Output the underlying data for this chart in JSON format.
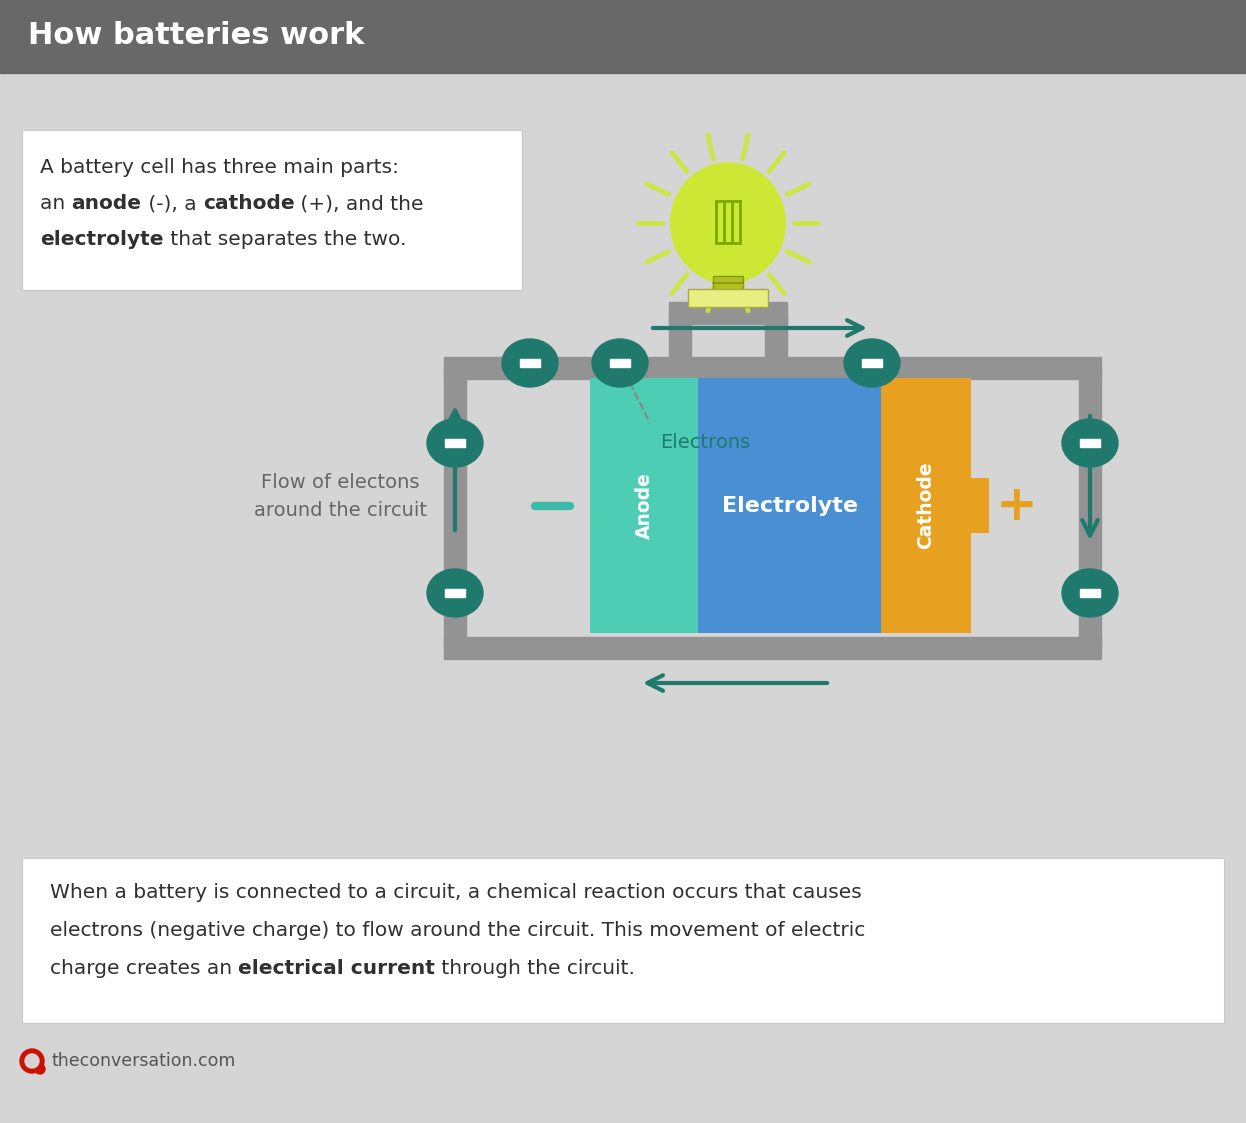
{
  "title": "How batteries work",
  "title_bg": "#686868",
  "title_color": "#ffffff",
  "bg_color": "#d5d5d5",
  "circuit_color": "#939393",
  "teal_dark": "#1f7a6d",
  "anode_color": "#4ecdb5",
  "electrolyte_color": "#4a8fd4",
  "cathode_color": "#e8a020",
  "bulb_yellow": "#cce835",
  "bulb_base_color": "#b8c830",
  "white_bg": "#ffffff",
  "bottom_line1": "When a battery is connected to a circuit, a chemical reaction occurs that causes",
  "bottom_line2": "electrons (negative charge) to flow around the circuit. This movement of electric",
  "bottom_line3_pre": "charge creates an ",
  "bottom_line3_bold": "electrical current",
  "bottom_line3_post": " through the circuit.",
  "flow_text1": "Flow of electons",
  "flow_text2": "around the circuit",
  "electrons_label": "Electrons",
  "anode_label": "Anode",
  "electrolyte_label": "Electrolyte",
  "cathode_label": "Cathode",
  "source": "theconversation.com",
  "top_text1": "A battery cell has three main parts:",
  "top_text2_pre": "an ",
  "top_text2_bold1": "anode",
  "top_text2_mid": " (-), a ",
  "top_text2_bold2": "cathode",
  "top_text2_post": " (+), and the",
  "top_text3_bold": "electrolyte",
  "top_text3_post": " that separates the two."
}
